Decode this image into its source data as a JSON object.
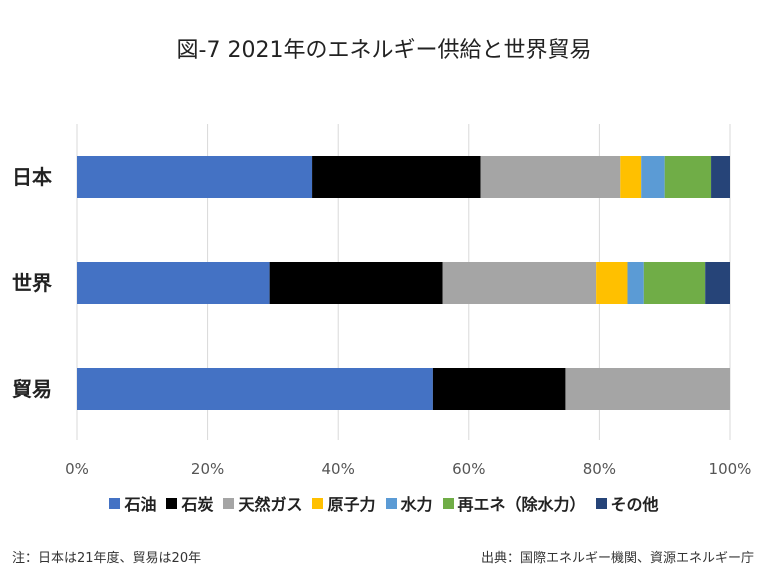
{
  "chart_data": {
    "type": "bar",
    "orientation": "horizontal",
    "stacked": "percent",
    "title": "図-7 2021年のエネルギー供給と世界貿易",
    "categories": [
      "日本",
      "世界",
      "貿易"
    ],
    "series": [
      {
        "name": "石油",
        "color": "#4472C4",
        "values": [
          36.0,
          29.5,
          54.5
        ]
      },
      {
        "name": "石炭",
        "color": "#000000",
        "values": [
          25.8,
          26.5,
          20.3
        ]
      },
      {
        "name": "天然ガス",
        "color": "#A5A5A5",
        "values": [
          21.4,
          23.5,
          25.2
        ]
      },
      {
        "name": "原子力",
        "color": "#FFC000",
        "values": [
          3.2,
          4.8,
          0
        ]
      },
      {
        "name": "水力",
        "color": "#5B9BD5",
        "values": [
          3.6,
          2.5,
          0
        ]
      },
      {
        "name": "再エネ（除水力）",
        "color": "#70AD47",
        "values": [
          7.1,
          9.4,
          0
        ]
      },
      {
        "name": "その他",
        "color": "#264478",
        "values": [
          2.9,
          3.8,
          0
        ]
      }
    ],
    "x_ticks": [
      "0%",
      "20%",
      "40%",
      "60%",
      "80%",
      "100%"
    ],
    "xlim": [
      0,
      100
    ],
    "grid": true,
    "legend_position": "bottom"
  },
  "footer": {
    "note": "注：日本は21年度、貿易は20年",
    "source": "出典：国際エネルギー機関、資源エネルギー庁"
  }
}
